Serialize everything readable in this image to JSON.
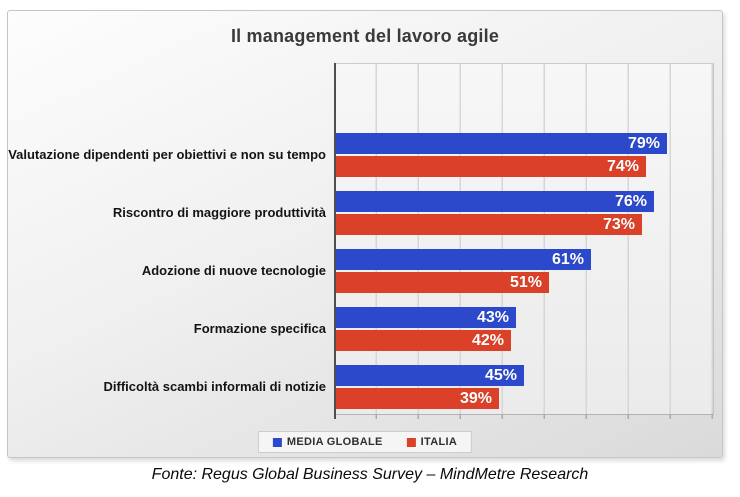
{
  "chart": {
    "title": "Il management del lavoro agile",
    "footer": "Fonte: Regus Global Business Survey – MindMetre Research"
  },
  "chart_data": {
    "type": "bar",
    "orientation": "horizontal",
    "title": "Il management del lavoro agile",
    "categories": [
      "Valutazione dipendenti per obiettivi e non su tempo",
      "Riscontro di maggiore produttività",
      "Adozione di nuove tecnologie",
      "Formazione specifica",
      "Difficoltà scambi informali di notizie"
    ],
    "series": [
      {
        "name": "MEDIA GLOBALE",
        "color": "#2c49cb",
        "values": [
          79,
          76,
          61,
          43,
          45
        ]
      },
      {
        "name": "ITALIA",
        "color": "#da4128",
        "values": [
          74,
          73,
          51,
          42,
          39
        ]
      }
    ],
    "value_suffix": "%",
    "xlim": [
      0,
      90
    ],
    "gridline_step": 10,
    "grid": true,
    "value_labels": "inside-end",
    "legend_position": "bottom",
    "source": "Fonte: Regus Global Business Survey – MindMetre Research"
  }
}
